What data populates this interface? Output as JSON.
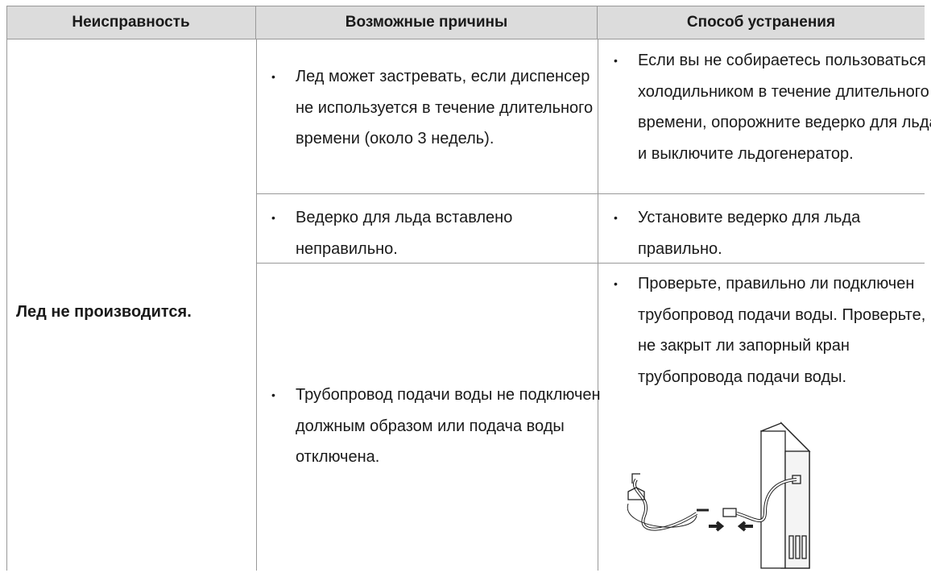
{
  "table": {
    "columns": [
      "Неисправность",
      "Возможные причины",
      "Способ устранения"
    ],
    "problem": "Лед не производится.",
    "rows": [
      {
        "cause": "Лед может застревать, если диспенсер не используется в течение длительного времени (около 3 недель).",
        "solution": "Если вы не собираетесь пользоваться холодильником в течение длительного времени, опорожните ведерко для льда и выключите льдогенератор."
      },
      {
        "cause": "Ведерко для льда вставлено неправильно.",
        "solution": "Установите ведерко для льда правильно."
      },
      {
        "cause": "Трубопровод подачи воды не подключен должным образом или подача воды отключена.",
        "solution": "Проверьте, правильно ли подключен трубопровод подачи воды. Проверьте, не закрыт ли запорный кран трубопровода подачи воды."
      }
    ]
  }
}
